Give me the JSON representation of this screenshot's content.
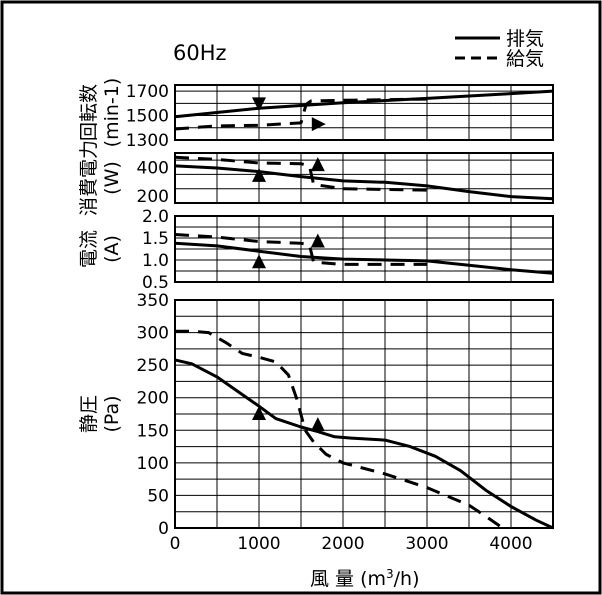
{
  "freq_label": "60Hz",
  "legend": [
    {
      "label": "排気",
      "style": "solid"
    },
    {
      "label": "給気",
      "style": "dashed"
    }
  ],
  "x_axis": {
    "label_main": "風 量",
    "label_unit_pre": "(m",
    "label_unit_sup": "3",
    "label_unit_post": "/h)"
  },
  "chart_data": [
    {
      "type": "line",
      "ylabel": "回転数",
      "ylabel_unit": "(min-1)",
      "xlim": [
        0,
        4500
      ],
      "ylim": [
        1300,
        1750
      ],
      "yticks": [
        1300,
        1500,
        1700
      ],
      "series": [
        {
          "name": "排気",
          "style": "solid",
          "x": [
            0,
            1000,
            2000,
            3000,
            4000,
            4500
          ],
          "y": [
            1490,
            1560,
            1605,
            1640,
            1680,
            1700
          ]
        },
        {
          "name": "給気",
          "style": "dashed",
          "x": [
            0,
            500,
            1000,
            1500,
            1560,
            1620,
            2000,
            2500,
            3000
          ],
          "y": [
            1390,
            1415,
            1420,
            1440,
            1590,
            1620,
            1625,
            1630,
            1635
          ]
        }
      ]
    },
    {
      "type": "line",
      "ylabel": "消費電力",
      "ylabel_unit": "(W)",
      "xlim": [
        0,
        4500
      ],
      "ylim": [
        150,
        500
      ],
      "yticks": [
        200,
        400
      ],
      "series": [
        {
          "name": "排気",
          "style": "solid",
          "x": [
            0,
            500,
            1000,
            1500,
            2000,
            2500,
            3000,
            3500,
            4000,
            4500
          ],
          "y": [
            410,
            395,
            370,
            335,
            305,
            295,
            270,
            230,
            195,
            180
          ]
        },
        {
          "name": "給気",
          "style": "dashed",
          "x": [
            0,
            500,
            1000,
            1500,
            1600,
            1650,
            2000,
            2500,
            3000
          ],
          "y": [
            470,
            455,
            430,
            425,
            410,
            280,
            250,
            245,
            240
          ]
        }
      ]
    },
    {
      "type": "line",
      "ylabel": "電流",
      "ylabel_unit": "(A)",
      "xlim": [
        0,
        4500
      ],
      "ylim": [
        0.5,
        2.0
      ],
      "yticks": [
        0.5,
        1.0,
        1.5,
        2.0
      ],
      "series": [
        {
          "name": "排気",
          "style": "solid",
          "x": [
            0,
            500,
            1000,
            1500,
            2000,
            2500,
            3000,
            3500,
            4000,
            4500
          ],
          "y": [
            1.38,
            1.32,
            1.2,
            1.08,
            1.02,
            1.0,
            0.98,
            0.88,
            0.78,
            0.7
          ]
        },
        {
          "name": "給気",
          "style": "dashed",
          "x": [
            0,
            500,
            1000,
            1500,
            1600,
            1650,
            2000,
            2500,
            3000
          ],
          "y": [
            1.58,
            1.52,
            1.42,
            1.38,
            1.35,
            0.95,
            0.9,
            0.9,
            0.9
          ]
        }
      ]
    },
    {
      "type": "line",
      "ylabel": "静圧",
      "ylabel_unit": "(Pa)",
      "xlim": [
        0,
        4500
      ],
      "ylim": [
        0,
        350
      ],
      "xticks": [
        0,
        1000,
        2000,
        3000,
        4000
      ],
      "yticks": [
        0,
        50,
        100,
        150,
        200,
        250,
        300,
        350
      ],
      "series": [
        {
          "name": "排気",
          "style": "solid",
          "x": [
            0,
            200,
            500,
            800,
            1000,
            1200,
            1500,
            1700,
            1900,
            2100,
            2500,
            2800,
            3100,
            3400,
            3700,
            4000,
            4300,
            4500
          ],
          "y": [
            258,
            252,
            232,
            205,
            187,
            168,
            155,
            148,
            140,
            138,
            135,
            125,
            110,
            88,
            58,
            33,
            12,
            0
          ]
        },
        {
          "name": "給気",
          "style": "dashed",
          "x": [
            0,
            200,
            400,
            600,
            800,
            1000,
            1200,
            1350,
            1450,
            1550,
            1650,
            1800,
            2000,
            2500,
            3000,
            3500,
            3700,
            3900
          ],
          "y": [
            302,
            302,
            300,
            285,
            268,
            262,
            255,
            235,
            198,
            150,
            132,
            113,
            100,
            83,
            62,
            35,
            18,
            0
          ]
        }
      ]
    }
  ]
}
